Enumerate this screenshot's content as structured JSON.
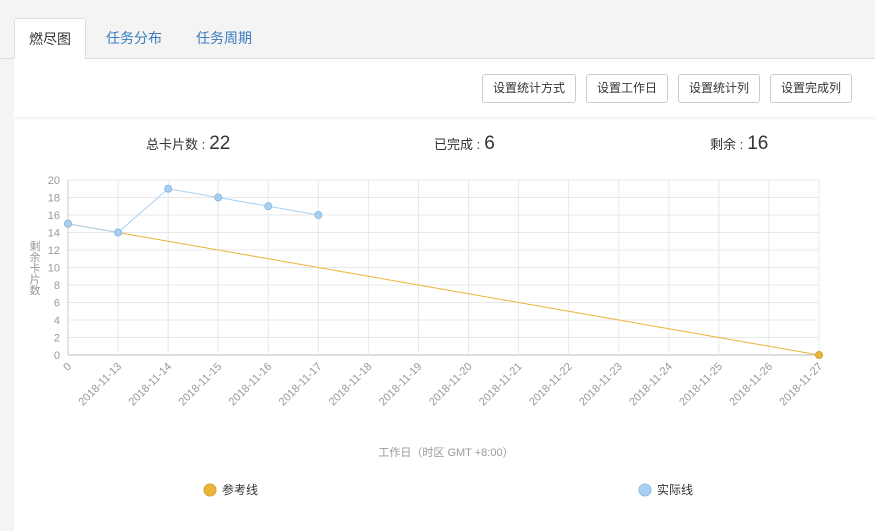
{
  "tabs": [
    "燃尽图",
    "任务分布",
    "任务周期"
  ],
  "buttons": [
    "设置统计方式",
    "设置工作日",
    "设置统计列",
    "设置完成列"
  ],
  "stats": [
    {
      "label": "总卡片数 :",
      "value": 22
    },
    {
      "label": "已完成 :",
      "value": 6
    },
    {
      "label": "剩余 :",
      "value": 16
    }
  ],
  "chart_data": {
    "type": "line",
    "categories": [
      "0",
      "2018-11-13",
      "2018-11-14",
      "2018-11-15",
      "2018-11-16",
      "2018-11-17",
      "2018-11-18",
      "2018-11-19",
      "2018-11-20",
      "2018-11-21",
      "2018-11-22",
      "2018-11-23",
      "2018-11-24",
      "2018-11-25",
      "2018-11-26",
      "2018-11-27"
    ],
    "series": [
      {
        "name": "参考线",
        "color": "#e9b63b",
        "values": [
          15,
          14,
          13,
          12,
          11,
          10,
          9,
          8,
          7,
          6,
          5,
          4,
          3,
          2,
          1,
          0
        ]
      },
      {
        "name": "实际线",
        "color": "#a9d0f2",
        "values": [
          15,
          14,
          19,
          18,
          17,
          16,
          null,
          null,
          null,
          null,
          null,
          null,
          null,
          null,
          null,
          null
        ]
      }
    ],
    "ylim": [
      0,
      20
    ],
    "yticks": [
      0,
      2,
      4,
      6,
      8,
      10,
      12,
      14,
      16,
      18,
      20
    ],
    "ylabel": "剩余卡片数",
    "xlabel": "工作日（时区 GMT +8:00）",
    "grid": true
  }
}
